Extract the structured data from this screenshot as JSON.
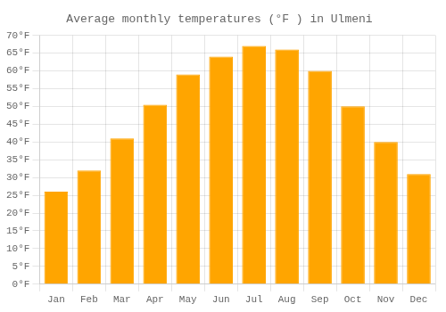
{
  "chart_data": {
    "type": "bar",
    "title": "Average monthly temperatures (°F ) in Ulmeni",
    "categories": [
      "Jan",
      "Feb",
      "Mar",
      "Apr",
      "May",
      "Jun",
      "Jul",
      "Aug",
      "Sep",
      "Oct",
      "Nov",
      "Dec"
    ],
    "values": [
      26.0,
      32.0,
      41.0,
      50.5,
      59.0,
      64.0,
      67.0,
      66.0,
      60.0,
      50.0,
      40.0,
      31.0
    ],
    "color": "#FFA500",
    "ylim": [
      0,
      70
    ],
    "yticks": [
      {
        "value": 0,
        "label": "0°F"
      },
      {
        "value": 5,
        "label": "5°F"
      },
      {
        "value": 10,
        "label": "10°F"
      },
      {
        "value": 15,
        "label": "15°F"
      },
      {
        "value": 20,
        "label": "20°F"
      },
      {
        "value": 25,
        "label": "25°F"
      },
      {
        "value": 30,
        "label": "30°F"
      },
      {
        "value": 35,
        "label": "35°F"
      },
      {
        "value": 40,
        "label": "40°F"
      },
      {
        "value": 45,
        "label": "45°F"
      },
      {
        "value": 50,
        "label": "50°F"
      },
      {
        "value": 55,
        "label": "55°F"
      },
      {
        "value": 60,
        "label": "60°F"
      },
      {
        "value": 65,
        "label": "65°F"
      },
      {
        "value": 70,
        "label": "70°F"
      }
    ],
    "grid": true
  }
}
